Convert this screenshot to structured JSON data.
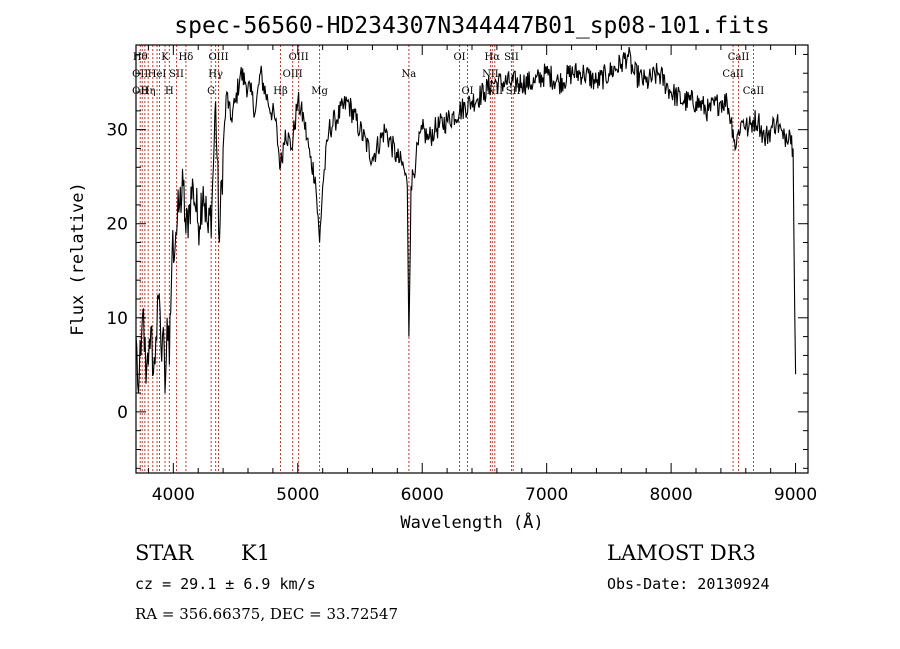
{
  "chart_data": {
    "type": "line",
    "title": "spec-56560-HD234307N344447B01_sp08-101.fits",
    "xlabel": "Wavelength (Å)",
    "ylabel": "Flux (relative)",
    "xlim": [
      3700,
      9100
    ],
    "ylim": [
      -6.5,
      39
    ],
    "xticks": [
      4000,
      5000,
      6000,
      7000,
      8000,
      9000
    ],
    "yticks": [
      0,
      10,
      20,
      30
    ],
    "grid": false,
    "series": [
      {
        "color": "#000000",
        "x": [
          3700,
          3720,
          3740,
          3760,
          3780,
          3800,
          3820,
          3840,
          3860,
          3880,
          3900,
          3920,
          3933,
          3950,
          3968,
          3990,
          4020,
          4050,
          4080,
          4101,
          4130,
          4160,
          4200,
          4240,
          4280,
          4310,
          4340,
          4370,
          4400,
          4430,
          4460,
          4500,
          4540,
          4580,
          4620,
          4660,
          4700,
          4760,
          4820,
          4861,
          4900,
          4950,
          5000,
          5050,
          5100,
          5140,
          5175,
          5200,
          5250,
          5300,
          5400,
          5500,
          5600,
          5700,
          5800,
          5850,
          5880,
          5893,
          5910,
          5950,
          6000,
          6050,
          6100,
          6200,
          6300,
          6400,
          6500,
          6563,
          6600,
          6700,
          6800,
          6900,
          7000,
          7100,
          7200,
          7300,
          7400,
          7500,
          7600,
          7650,
          7700,
          7800,
          7900,
          8000,
          8100,
          8200,
          8300,
          8400,
          8450,
          8498,
          8520,
          8542,
          8580,
          8620,
          8662,
          8700,
          8750,
          8800,
          8850,
          8900,
          8950,
          8980,
          9000
        ],
        "y": [
          8,
          2,
          6,
          11,
          3,
          5,
          9,
          4,
          8,
          12,
          7,
          9,
          2,
          10,
          5,
          17,
          19,
          22,
          24,
          19,
          22,
          24,
          20,
          24,
          19,
          22,
          33,
          18,
          28,
          34,
          31,
          33,
          36,
          35,
          34,
          32,
          36,
          33,
          31,
          26,
          30,
          28,
          33,
          31,
          27,
          25,
          18,
          24,
          30,
          31,
          33,
          30,
          27,
          30,
          27,
          26,
          24,
          8,
          24,
          27,
          30,
          29,
          30,
          31,
          32,
          33,
          34,
          35,
          35,
          35,
          35,
          35,
          36,
          35,
          36,
          36,
          35,
          36,
          37,
          38,
          36,
          35,
          36,
          34,
          33,
          33,
          32,
          33,
          33,
          30,
          28,
          30,
          31,
          30,
          31,
          31,
          29,
          30,
          31,
          29,
          30,
          28,
          4
        ]
      }
    ],
    "lines": [
      {
        "wave": 3734,
        "labels": [
          {
            "text": "Hθ",
            "row": 0
          },
          {
            "text": "OII",
            "row": 1
          },
          {
            "text": "OII",
            "row": 2
          }
        ]
      },
      {
        "wave": 3750,
        "labels": []
      },
      {
        "wave": 3771,
        "labels": []
      },
      {
        "wave": 3798,
        "labels": [
          {
            "text": "Hη",
            "row": 2
          }
        ]
      },
      {
        "wave": 3835,
        "labels": []
      },
      {
        "wave": 3869,
        "labels": [
          {
            "text": "HeI",
            "row": 1
          }
        ]
      },
      {
        "wave": 3889,
        "labels": []
      },
      {
        "wave": 3933,
        "labels": [
          {
            "text": "K",
            "row": 0
          }
        ]
      },
      {
        "wave": 3968,
        "labels": [
          {
            "text": "H",
            "row": 2
          }
        ]
      },
      {
        "wave": 4026,
        "labels": [
          {
            "text": "SII",
            "row": 1
          }
        ]
      },
      {
        "wave": 4101,
        "labels": [
          {
            "text": "Hδ",
            "row": 0
          }
        ]
      },
      {
        "wave": 4304,
        "labels": [
          {
            "text": "G",
            "row": 2
          }
        ]
      },
      {
        "wave": 4340,
        "labels": [
          {
            "text": "Hγ",
            "row": 1
          }
        ]
      },
      {
        "wave": 4363,
        "labels": [
          {
            "text": "OIII",
            "row": 0
          }
        ]
      },
      {
        "wave": 4861,
        "labels": [
          {
            "text": "Hβ",
            "row": 2
          }
        ]
      },
      {
        "wave": 4959,
        "labels": [
          {
            "text": "OIII",
            "row": 1
          }
        ]
      },
      {
        "wave": 5007,
        "labels": [
          {
            "text": "OIII",
            "row": 0
          }
        ]
      },
      {
        "wave": 5175,
        "labels": [
          {
            "text": "Mg",
            "row": 2
          }
        ]
      },
      {
        "wave": 5893,
        "labels": [
          {
            "text": "Na",
            "row": 1
          }
        ]
      },
      {
        "wave": 6300,
        "labels": [
          {
            "text": "OI",
            "row": 0
          }
        ]
      },
      {
        "wave": 6364,
        "labels": [
          {
            "text": "OI",
            "row": 2
          }
        ]
      },
      {
        "wave": 6548,
        "labels": [
          {
            "text": "NII",
            "row": 1
          }
        ]
      },
      {
        "wave": 6563,
        "labels": [
          {
            "text": "Hα",
            "row": 0
          }
        ]
      },
      {
        "wave": 6583,
        "labels": [
          {
            "text": "NII",
            "row": 2
          }
        ]
      },
      {
        "wave": 6717,
        "labels": [
          {
            "text": "SII",
            "row": 0
          }
        ]
      },
      {
        "wave": 6731,
        "labels": [
          {
            "text": "SII",
            "row": 2
          }
        ]
      },
      {
        "wave": 8498,
        "labels": [
          {
            "text": "CaII",
            "row": 1
          }
        ]
      },
      {
        "wave": 8542,
        "labels": [
          {
            "text": "CaII",
            "row": 0
          }
        ]
      },
      {
        "wave": 8662,
        "labels": [
          {
            "text": "CaII",
            "row": 2
          }
        ]
      }
    ]
  },
  "info": {
    "class_label": "STAR",
    "subclass_label": "K1",
    "survey_label": "LAMOST DR3",
    "cz_text": "cz = 29.1 ± 6.9 km/s",
    "obs_date_text": "Obs-Date: 20130924",
    "coords_text": "RA = 356.66375, DEC =  33.72547"
  }
}
